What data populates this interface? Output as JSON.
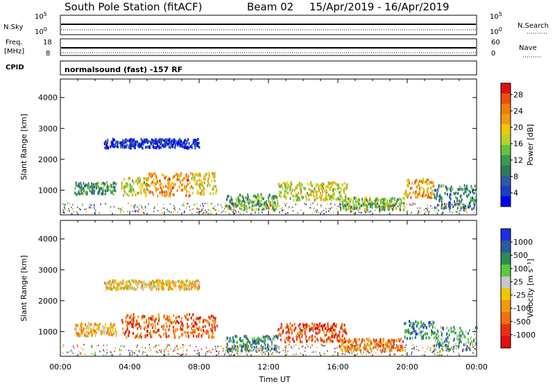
{
  "header": {
    "station": "South Pole Station (fitACF)",
    "beam": "Beam 02",
    "dates": "15/Apr/2019 - 16/Apr/2019"
  },
  "top_panels": {
    "nsky_label": "N.Sky",
    "nsky_top": "10^5",
    "nsky_bottom": "10^0",
    "nsearch_label": "N.Search",
    "nsearch_top": "10^5",
    "nsearch_bottom": "10^0",
    "freq_label_1": "Freq.",
    "freq_label_2": "[MHz]",
    "freq_top": "18",
    "freq_bottom": "8",
    "nave_label": "Nave",
    "nave_top": "60",
    "nave_bottom": "0",
    "cpid_label": "CPID",
    "cpid_text": "normalsound (fast) -157 RF"
  },
  "chart_data": [
    {
      "type": "heatmap",
      "quantity": "power",
      "ylabel": "Slant Range [km]",
      "ylim": [
        200,
        4600
      ],
      "yticks": [
        1000,
        2000,
        3000,
        4000
      ],
      "x_ticks": [
        "00:00",
        "04:00",
        "08:00",
        "12:00",
        "16:00",
        "20:00",
        "00:00"
      ],
      "x_range_hours": [
        0,
        24
      ],
      "colorbar": {
        "label": "Power [dB]",
        "ticks": [
          "4",
          "8",
          "12",
          "16",
          "20",
          "24",
          "28"
        ],
        "colors": [
          "#0000f0",
          "#1e3cc8",
          "#2c5aa0",
          "#2f7a55",
          "#3a9a50",
          "#66c43c",
          "#b8d22c",
          "#f0c800",
          "#f09a10",
          "#f07a10",
          "#e85010",
          "#e01010"
        ]
      },
      "echo_regions": [
        {
          "t": [
            0.8,
            3.2
          ],
          "r": [
            900,
            1300
          ],
          "level": 0.35
        },
        {
          "t": [
            3.5,
            5.0
          ],
          "r": [
            850,
            1450
          ],
          "level": 0.55
        },
        {
          "t": [
            5.0,
            7.5
          ],
          "r": [
            850,
            1600
          ],
          "level": 0.75
        },
        {
          "t": [
            7.5,
            9.0
          ],
          "r": [
            900,
            1600
          ],
          "level": 0.6
        },
        {
          "t": [
            2.5,
            8.0
          ],
          "r": [
            2400,
            2700
          ],
          "level": 0.1
        },
        {
          "t": [
            9.5,
            12.5
          ],
          "r": [
            400,
            900
          ],
          "level": 0.4
        },
        {
          "t": [
            12.5,
            16.5
          ],
          "r": [
            700,
            1300
          ],
          "level": 0.55
        },
        {
          "t": [
            16.0,
            19.8
          ],
          "r": [
            400,
            800
          ],
          "level": 0.45
        },
        {
          "t": [
            19.8,
            21.5
          ],
          "r": [
            800,
            1400
          ],
          "level": 0.7
        },
        {
          "t": [
            21.5,
            24.0
          ],
          "r": [
            400,
            1200
          ],
          "level": 0.3
        }
      ]
    },
    {
      "type": "heatmap",
      "quantity": "velocity",
      "ylabel": "Slant Range [km]",
      "xlabel": "Time UT",
      "ylim": [
        200,
        4600
      ],
      "yticks": [
        1000,
        2000,
        3000,
        4000
      ],
      "x_ticks": [
        "00:00",
        "04:00",
        "08:00",
        "12:00",
        "16:00",
        "20:00",
        "00:00"
      ],
      "x_range_hours": [
        0,
        24
      ],
      "colorbar": {
        "label": "Velocity [m s⁻¹]",
        "ticks": [
          "1000",
          "500",
          "100",
          "25",
          "-25",
          "-100",
          "-500",
          "-1000"
        ],
        "colors": [
          "#1e2ee0",
          "#2c5aa0",
          "#2f8a55",
          "#5ac83c",
          "#c8c8c8",
          "#f0c800",
          "#f09a10",
          "#f07010",
          "#e83010",
          "#e01010"
        ]
      },
      "echo_regions": [
        {
          "t": [
            0.8,
            3.2
          ],
          "r": [
            900,
            1300
          ],
          "level": 0.6
        },
        {
          "t": [
            3.5,
            9.0
          ],
          "r": [
            850,
            1600
          ],
          "level": 0.78
        },
        {
          "t": [
            2.5,
            8.0
          ],
          "r": [
            2400,
            2700
          ],
          "level": 0.55
        },
        {
          "t": [
            9.5,
            12.5
          ],
          "r": [
            400,
            900
          ],
          "level": 0.25
        },
        {
          "t": [
            12.5,
            16.5
          ],
          "r": [
            700,
            1300
          ],
          "level": 0.82
        },
        {
          "t": [
            16.0,
            19.8
          ],
          "r": [
            400,
            800
          ],
          "level": 0.72
        },
        {
          "t": [
            19.8,
            21.5
          ],
          "r": [
            800,
            1400
          ],
          "level": 0.25
        },
        {
          "t": [
            21.5,
            24.0
          ],
          "r": [
            400,
            1200
          ],
          "level": 0.3
        }
      ]
    }
  ],
  "xlabel": "Time UT"
}
